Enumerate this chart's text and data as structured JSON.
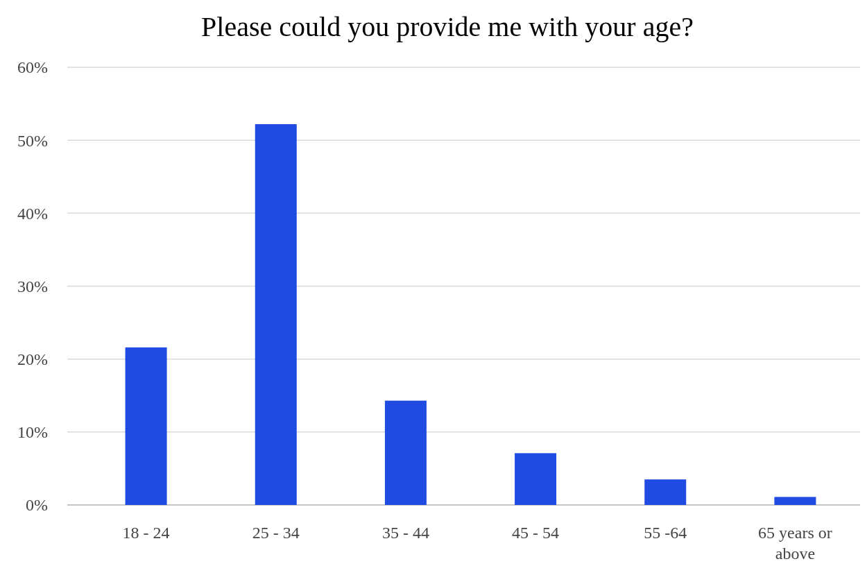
{
  "chart_data": {
    "type": "bar",
    "title": "Please could you provide me with your age?",
    "categories": [
      "18 - 24",
      "25 - 34",
      "35 - 44",
      "45 - 54",
      "55 -64",
      "65 years or above"
    ],
    "values": [
      21.6,
      52.2,
      14.3,
      7.1,
      3.5,
      1.1
    ],
    "color": "#1f4be3",
    "ylim": [
      0,
      60
    ],
    "yticks": [
      {
        "value": 0,
        "label": "0%"
      },
      {
        "value": 10,
        "label": "10%"
      },
      {
        "value": 20,
        "label": "20%"
      },
      {
        "value": 30,
        "label": "30%"
      },
      {
        "value": 40,
        "label": "40%"
      },
      {
        "value": 50,
        "label": "50%"
      },
      {
        "value": 60,
        "label": "60%"
      }
    ],
    "grid": "y"
  }
}
